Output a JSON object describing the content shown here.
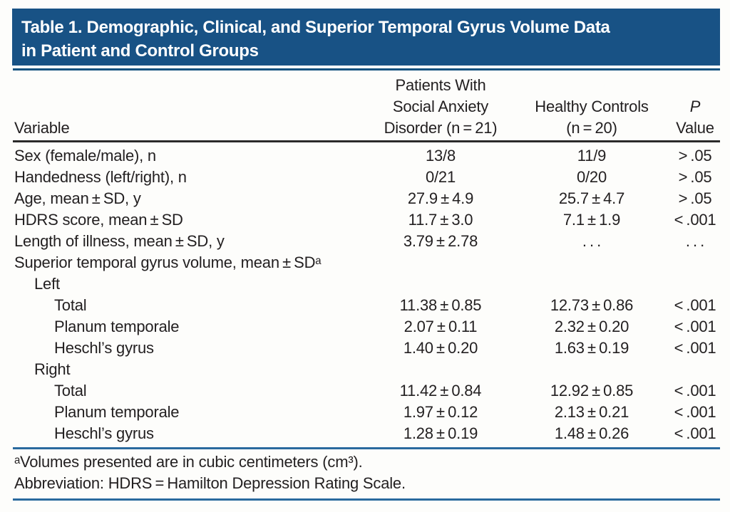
{
  "title_lines": [
    "Table 1. Demographic, Clinical, and Superior Temporal Gyrus Volume Data",
    "in Patient and Control Groups"
  ],
  "columns": {
    "variable": "Variable",
    "patients": [
      "Patients With",
      "Social Anxiety",
      "Disorder (n = 21)"
    ],
    "controls": [
      "Healthy Controls",
      "(n = 20)"
    ],
    "pvalue": [
      "P",
      "Value"
    ]
  },
  "rows": [
    {
      "label": "Sex (female/male), n",
      "indent": 0,
      "patients": "13/8",
      "controls": "11/9",
      "p": "> .05"
    },
    {
      "label": "Handedness (left/right), n",
      "indent": 0,
      "patients": "0/21",
      "controls": "0/20",
      "p": "> .05"
    },
    {
      "label": "Age, mean ± SD, y",
      "indent": 0,
      "patients": "27.9 ± 4.9",
      "controls": "25.7 ± 4.7",
      "p": "> .05"
    },
    {
      "label": "HDRS score, mean ± SD",
      "indent": 0,
      "patients": "11.7 ± 3.0",
      "controls": "7.1 ± 1.9",
      "p": "< .001"
    },
    {
      "label": "Length of illness, mean ± SD, y",
      "indent": 0,
      "patients": "3.79 ± 2.78",
      "controls": ". . .",
      "p": ". . ."
    },
    {
      "label": "Superior temporal gyrus volume, mean ± SDᵃ",
      "indent": 0
    },
    {
      "label": "Left",
      "indent": 1
    },
    {
      "label": "Total",
      "indent": 2,
      "patients": "11.38 ± 0.85",
      "controls": "12.73 ± 0.86",
      "p": "< .001"
    },
    {
      "label": "Planum temporale",
      "indent": 2,
      "patients": "2.07 ± 0.11",
      "controls": "2.32 ± 0.20",
      "p": "< .001"
    },
    {
      "label": "Heschl’s gyrus",
      "indent": 2,
      "patients": "1.40 ± 0.20",
      "controls": "1.63 ± 0.19",
      "p": "< .001"
    },
    {
      "label": "Right",
      "indent": 1
    },
    {
      "label": "Total",
      "indent": 2,
      "patients": "11.42 ± 0.84",
      "controls": "12.92 ± 0.85",
      "p": "< .001"
    },
    {
      "label": "Planum temporale",
      "indent": 2,
      "patients": "1.97 ± 0.12",
      "controls": "2.13 ± 0.21",
      "p": "< .001"
    },
    {
      "label": "Heschl’s gyrus",
      "indent": 2,
      "patients": "1.28 ± 0.19",
      "controls": "1.48 ± 0.26",
      "p": "< .001"
    }
  ],
  "footnotes": [
    "ᵃVolumes presented are in cubic centimeters (cm³).",
    "Abbreviation: HDRS = Hamilton Depression Rating Scale."
  ],
  "colors": {
    "header_bg": "#185285",
    "header_text": "#ffffff",
    "rule_dark_blue": "#14527f",
    "rule_black": "#2b2a2a",
    "rule_blue": "#2a6a9e",
    "text": "#221f20",
    "background": "#fdfdfb"
  }
}
